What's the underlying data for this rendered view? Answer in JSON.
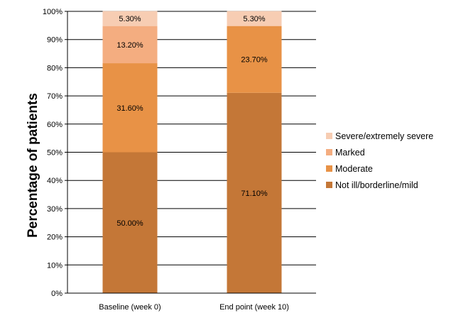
{
  "chart_data": {
    "type": "bar",
    "stacked": true,
    "ylabel": "Percentage of patients",
    "xlabel": "",
    "ylim": [
      0,
      100
    ],
    "y_ticks": [
      "0%",
      "10%",
      "20%",
      "30%",
      "40%",
      "50%",
      "60%",
      "70%",
      "80%",
      "90%",
      "100%"
    ],
    "categories": [
      "Baseline (week 0)",
      "End point (week 10)"
    ],
    "grid": true,
    "legend_position": "right",
    "series": [
      {
        "name": "Not ill/borderline/mild",
        "values": [
          50.0,
          71.1
        ],
        "labels": [
          "50.00%",
          "71.10%"
        ],
        "color": "#c47737"
      },
      {
        "name": "Moderate",
        "values": [
          31.6,
          23.7
        ],
        "labels": [
          "31.60%",
          "23.70%"
        ],
        "color": "#e89246"
      },
      {
        "name": "Marked",
        "values": [
          13.2,
          0
        ],
        "labels": [
          "13.20%",
          ""
        ],
        "color": "#f4ad80"
      },
      {
        "name": "Severe/extremely severe",
        "values": [
          5.3,
          5.3
        ],
        "labels": [
          "5.30%",
          "5.30%"
        ],
        "color": "#f7cdb3"
      }
    ],
    "legend_order": [
      "Severe/extremely severe",
      "Marked",
      "Moderate",
      "Not ill/borderline/mild"
    ]
  }
}
